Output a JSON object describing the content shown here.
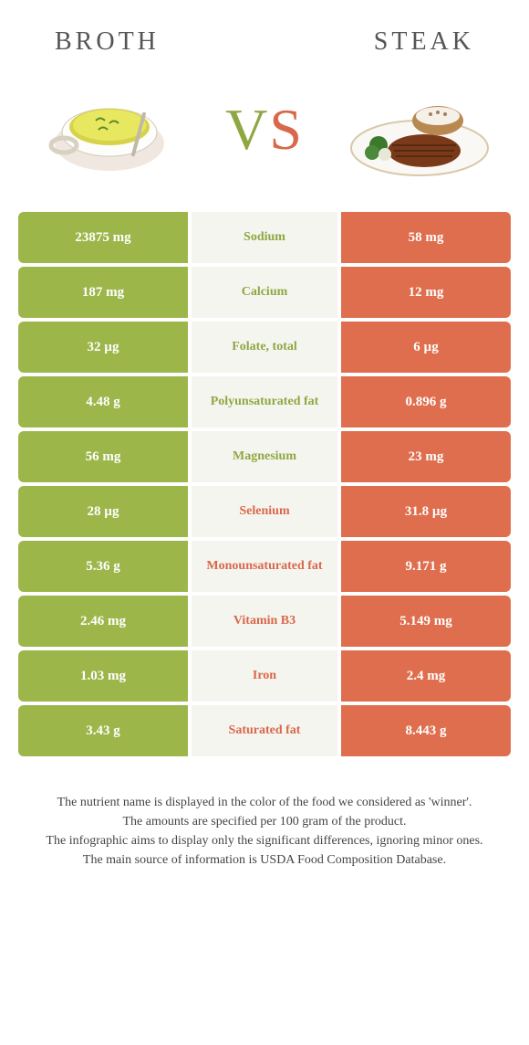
{
  "header": {
    "left_title": "BROTH",
    "right_title": "STEAK"
  },
  "vs": {
    "v": "V",
    "s": "S"
  },
  "colors": {
    "green": "#9db64a",
    "orange": "#df6e4e",
    "mid_bg": "#f5f5ef",
    "green_text": "#8fa742",
    "orange_text": "#d9684b"
  },
  "rows": [
    {
      "left": "23875 mg",
      "label": "Sodium",
      "right": "58 mg",
      "winner": "left"
    },
    {
      "left": "187 mg",
      "label": "Calcium",
      "right": "12 mg",
      "winner": "left"
    },
    {
      "left": "32 µg",
      "label": "Folate, total",
      "right": "6 µg",
      "winner": "left"
    },
    {
      "left": "4.48 g",
      "label": "Polyunsaturated fat",
      "right": "0.896 g",
      "winner": "left"
    },
    {
      "left": "56 mg",
      "label": "Magnesium",
      "right": "23 mg",
      "winner": "left"
    },
    {
      "left": "28 µg",
      "label": "Selenium",
      "right": "31.8 µg",
      "winner": "right"
    },
    {
      "left": "5.36 g",
      "label": "Monounsaturated fat",
      "right": "9.171 g",
      "winner": "right"
    },
    {
      "left": "2.46 mg",
      "label": "Vitamin B3",
      "right": "5.149 mg",
      "winner": "right"
    },
    {
      "left": "1.03 mg",
      "label": "Iron",
      "right": "2.4 mg",
      "winner": "right"
    },
    {
      "left": "3.43 g",
      "label": "Saturated fat",
      "right": "8.443 g",
      "winner": "right"
    }
  ],
  "footer": {
    "line1": "The nutrient name is displayed in the color of the food we considered as 'winner'.",
    "line2": "The amounts are specified per 100 gram of the product.",
    "line3": "The infographic aims to display only the significant differences, ignoring minor ones.",
    "line4": "The main source of information is USDA Food Composition Database."
  }
}
